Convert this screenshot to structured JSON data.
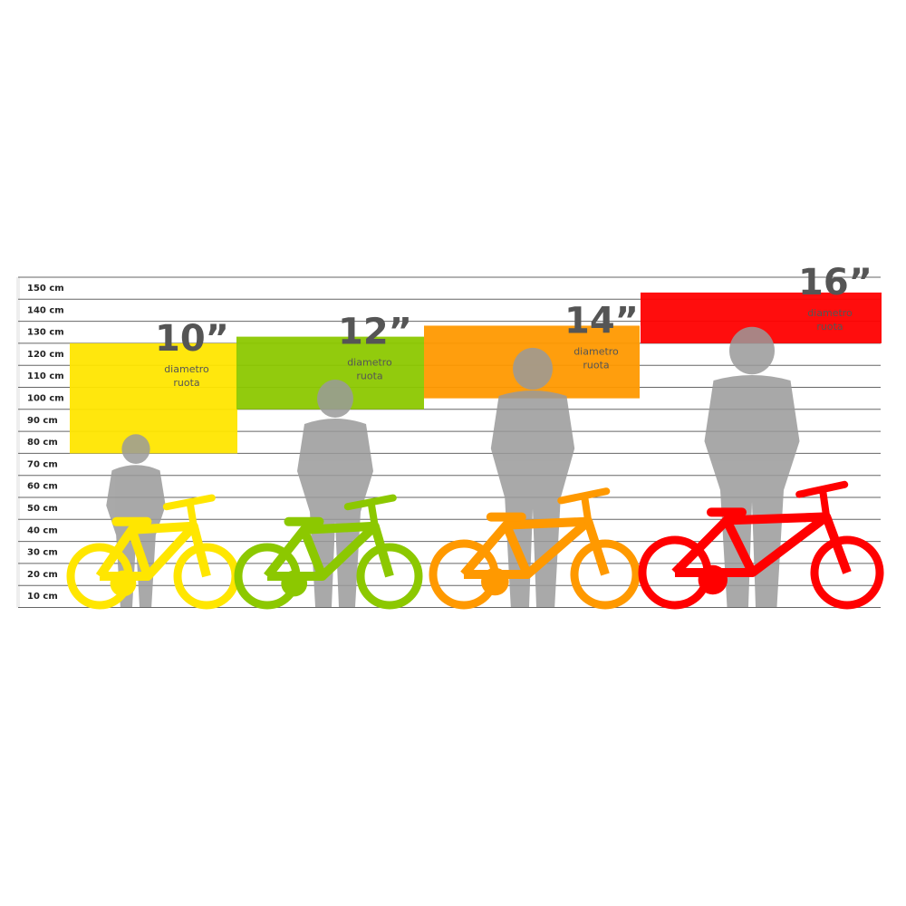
{
  "scale": {
    "unit": "cm",
    "labels": [
      "150 cm",
      "140 cm",
      "130 cm",
      "120 cm",
      "110 cm",
      "100 cm",
      "90 cm",
      "80 cm",
      "70 cm",
      "60 cm",
      "50 cm",
      "40 cm",
      "30 cm",
      "20 cm",
      "10 cm"
    ]
  },
  "sizes": [
    {
      "wheel": "10”",
      "line1": "diametro",
      "line2": "ruota",
      "color": "#ffe600",
      "height_range_cm": [
        70,
        120
      ]
    },
    {
      "wheel": "12”",
      "line1": "diametro",
      "line2": "ruota",
      "color": "#8cc800",
      "height_range_cm": [
        90,
        123
      ]
    },
    {
      "wheel": "14”",
      "line1": "diametro",
      "line2": "ruota",
      "color": "#ff9900",
      "height_range_cm": [
        95,
        128
      ]
    },
    {
      "wheel": "16”",
      "line1": "diametro",
      "line2": "ruota",
      "color": "#ff0000",
      "height_range_cm": [
        120,
        141
      ]
    }
  ],
  "colors": {
    "silhouette": "#9a9a9a",
    "gridline": "#666666"
  }
}
